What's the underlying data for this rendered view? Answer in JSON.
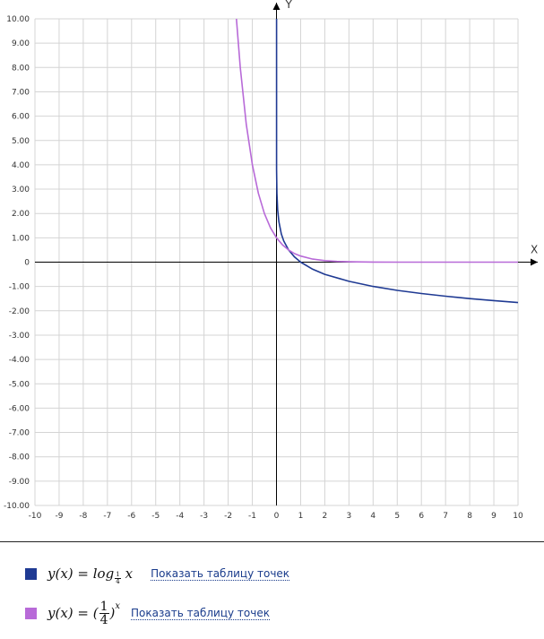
{
  "chart_data": {
    "type": "line",
    "xlabel": "X",
    "ylabel": "Y",
    "xlim": [
      -10,
      10
    ],
    "ylim": [
      -10,
      10
    ],
    "grid": true,
    "x_ticks": [
      "-10",
      "-9",
      "-8",
      "-7",
      "-6",
      "-5",
      "-4",
      "-3",
      "-2",
      "-1",
      "0",
      "1",
      "2",
      "3",
      "4",
      "5",
      "6",
      "7",
      "8",
      "9",
      "10"
    ],
    "y_ticks": [
      "10.00",
      "9.00",
      "8.00",
      "7.00",
      "6.00",
      "5.00",
      "4.00",
      "3.00",
      "2.00",
      "1.00",
      "0",
      "-1.00",
      "-2.00",
      "-3.00",
      "-4.00",
      "-5.00",
      "-6.00",
      "-7.00",
      "-8.00",
      "-9.00",
      "-10.00"
    ],
    "series": [
      {
        "function": "log_(1/4)(x)",
        "color": "#1f3a93",
        "x": [
          0.005,
          0.01,
          0.02,
          0.05,
          0.1,
          0.2,
          0.3,
          0.5,
          0.75,
          1,
          1.5,
          2,
          3,
          4,
          5,
          6,
          7,
          8,
          9,
          10
        ],
        "y": [
          3.82,
          3.32,
          2.82,
          2.16,
          1.66,
          1.16,
          0.87,
          0.5,
          0.21,
          0,
          -0.29,
          -0.5,
          -0.79,
          -1.0,
          -1.16,
          -1.29,
          -1.4,
          -1.5,
          -1.58,
          -1.66
        ]
      },
      {
        "function": "(1/4)^x",
        "color": "#b86ad8",
        "x": [
          -1.66,
          -1.5,
          -1.25,
          -1,
          -0.75,
          -0.5,
          -0.25,
          0,
          0.25,
          0.5,
          0.75,
          1,
          1.5,
          2,
          2.5,
          3,
          4,
          5,
          6,
          7,
          8,
          9,
          10
        ],
        "y": [
          10.0,
          8.0,
          5.66,
          4.0,
          2.83,
          2.0,
          1.41,
          1.0,
          0.71,
          0.5,
          0.35,
          0.25,
          0.125,
          0.0625,
          0.031,
          0.016,
          0.004,
          0.001,
          0.0,
          0.0,
          0.0,
          0.0,
          0.0
        ]
      }
    ]
  },
  "legend": [
    {
      "formula_lhs": "y(x) = log",
      "formula_base_num": "1",
      "formula_base_den": "4",
      "formula_arg": "x",
      "color": "#1f3a93",
      "link": "Показать таблицу точек"
    },
    {
      "formula_lhs": "y(x) = (",
      "formula_frac_num": "1",
      "formula_frac_den": "4",
      "formula_rparen": ")",
      "formula_exp": "x",
      "color": "#b86ad8",
      "link": "Показать таблицу точек"
    }
  ]
}
